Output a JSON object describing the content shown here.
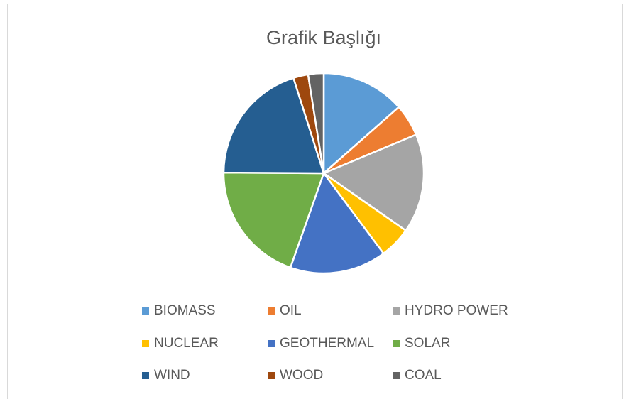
{
  "chart_data": {
    "type": "pie",
    "title": "Grafik Başlığı",
    "categories": [
      "BIOMASS",
      "OIL",
      "HYDRO POWER",
      "NUCLEAR",
      "GEOTHERMAL",
      "SOLAR",
      "WIND",
      "WOOD",
      "COAL"
    ],
    "values": [
      13.5,
      5.2,
      16,
      5.1,
      15.6,
      19.7,
      20,
      2.4,
      2.5
    ],
    "colors": [
      "#5b9bd5",
      "#ed7d31",
      "#a5a5a5",
      "#ffc000",
      "#4472c4",
      "#70ad47",
      "#255e91",
      "#9e480e",
      "#636363"
    ],
    "legend": "bottom"
  }
}
